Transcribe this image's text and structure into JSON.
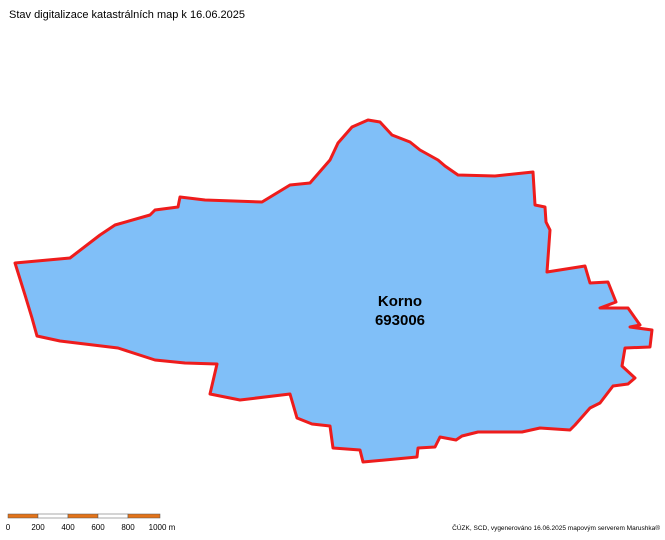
{
  "header": {
    "title": "Stav digitalizace katastrálních map k 16.06.2025"
  },
  "map": {
    "area": {
      "name": "Korno",
      "code": "693006"
    },
    "scale_bar": {
      "labels": [
        "0",
        "200",
        "400",
        "600",
        "800",
        "1000 m"
      ]
    },
    "attribution": "ČÚZK, SCD, vygenerováno 16.06.2025 mapovým serverem Marushka®"
  }
}
